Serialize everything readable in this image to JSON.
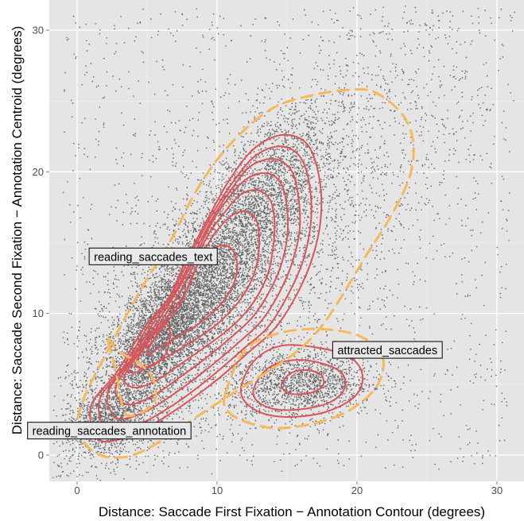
{
  "chart_data": {
    "type": "scatter",
    "xlabel": "Distance: Saccade First Fixation − Annotation Contour (degrees)",
    "ylabel": "Distance: Saccade Second Fixation − Annotation Centroid (degrees)",
    "xlim": [
      -2,
      31.5
    ],
    "ylim": [
      -2,
      32
    ],
    "x_ticks": [
      0,
      10,
      20,
      30
    ],
    "x_tick_labels": [
      "0",
      "10",
      "20",
      "30"
    ],
    "y_ticks": [
      0,
      10,
      20,
      30
    ],
    "y_tick_labels": [
      "0",
      "10",
      "20",
      "30"
    ],
    "grid": true,
    "background": "#e5e5e5",
    "point_color": "#000000",
    "series": [
      {
        "name": "reading_saccades_text",
        "style": "solid",
        "color": "#d9555a",
        "contours": [
          [
            [
              1.0,
              3.5
            ],
            [
              2.8,
              5.8
            ],
            [
              4.8,
              9.0
            ],
            [
              6.6,
              11.2
            ],
            [
              7.8,
              13.8
            ],
            [
              9.4,
              16.8
            ],
            [
              10.8,
              19.3
            ],
            [
              12.6,
              21.6
            ],
            [
              14.6,
              22.6
            ],
            [
              16.4,
              22.0
            ],
            [
              17.3,
              19.6
            ],
            [
              17.4,
              16.6
            ],
            [
              16.7,
              13.6
            ],
            [
              15.4,
              10.8
            ],
            [
              14.0,
              8.8
            ],
            [
              12.3,
              7.3
            ],
            [
              10.1,
              5.4
            ],
            [
              7.8,
              3.7
            ],
            [
              5.3,
              2.1
            ],
            [
              3.0,
              1.1
            ],
            [
              1.4,
              1.2
            ]
          ],
          [
            [
              1.6,
              3.9
            ],
            [
              3.3,
              6.2
            ],
            [
              5.2,
              9.3
            ],
            [
              6.9,
              11.6
            ],
            [
              8.1,
              14.1
            ],
            [
              9.6,
              16.9
            ],
            [
              11.0,
              19.1
            ],
            [
              12.7,
              21.1
            ],
            [
              14.5,
              21.8
            ],
            [
              15.9,
              21.1
            ],
            [
              16.6,
              19.1
            ],
            [
              16.7,
              16.4
            ],
            [
              16.1,
              13.6
            ],
            [
              14.9,
              11.0
            ],
            [
              13.6,
              9.0
            ],
            [
              12.0,
              7.6
            ],
            [
              9.9,
              5.8
            ],
            [
              7.7,
              4.1
            ],
            [
              5.3,
              2.6
            ],
            [
              3.2,
              1.7
            ],
            [
              2.0,
              1.8
            ]
          ],
          [
            [
              2.2,
              4.4
            ],
            [
              3.8,
              6.7
            ],
            [
              5.5,
              9.4
            ],
            [
              7.1,
              11.7
            ],
            [
              8.3,
              14.1
            ],
            [
              9.6,
              16.6
            ],
            [
              10.9,
              18.6
            ],
            [
              12.4,
              20.4
            ],
            [
              14.1,
              20.9
            ],
            [
              15.3,
              20.1
            ],
            [
              15.8,
              18.3
            ],
            [
              15.9,
              15.9
            ],
            [
              15.3,
              13.4
            ],
            [
              14.3,
              11.2
            ],
            [
              13.1,
              9.4
            ],
            [
              11.6,
              8.0
            ],
            [
              9.7,
              6.4
            ],
            [
              7.6,
              4.8
            ],
            [
              5.5,
              3.4
            ],
            [
              3.6,
              2.6
            ],
            [
              2.6,
              2.8
            ]
          ],
          [
            [
              2.8,
              4.9
            ],
            [
              4.2,
              7.1
            ],
            [
              5.8,
              9.5
            ],
            [
              7.2,
              11.7
            ],
            [
              8.4,
              13.9
            ],
            [
              9.5,
              16.2
            ],
            [
              10.7,
              18.0
            ],
            [
              12.1,
              19.5
            ],
            [
              13.6,
              19.9
            ],
            [
              14.6,
              19.1
            ],
            [
              15.0,
              17.4
            ],
            [
              15.0,
              15.3
            ],
            [
              14.5,
              13.2
            ],
            [
              13.6,
              11.3
            ],
            [
              12.5,
              9.7
            ],
            [
              11.1,
              8.4
            ],
            [
              9.4,
              7.0
            ],
            [
              7.5,
              5.6
            ],
            [
              5.6,
              4.3
            ],
            [
              4.0,
              3.6
            ],
            [
              3.1,
              3.8
            ]
          ],
          [
            [
              3.4,
              5.6
            ],
            [
              4.7,
              7.6
            ],
            [
              6.1,
              9.6
            ],
            [
              7.4,
              11.6
            ],
            [
              8.4,
              13.6
            ],
            [
              9.4,
              15.6
            ],
            [
              10.5,
              17.1
            ],
            [
              11.7,
              18.4
            ],
            [
              12.9,
              18.7
            ],
            [
              13.8,
              18.0
            ],
            [
              14.1,
              16.5
            ],
            [
              14.0,
              14.6
            ],
            [
              13.6,
              12.7
            ],
            [
              12.8,
              11.1
            ],
            [
              11.8,
              9.8
            ],
            [
              10.6,
              8.7
            ],
            [
              9.1,
              7.6
            ],
            [
              7.5,
              6.5
            ],
            [
              5.9,
              5.4
            ],
            [
              4.5,
              4.8
            ],
            [
              3.7,
              4.9
            ]
          ],
          [
            [
              4.2,
              6.6
            ],
            [
              5.3,
              8.3
            ],
            [
              6.5,
              9.8
            ],
            [
              7.7,
              11.4
            ],
            [
              8.5,
              13.2
            ],
            [
              9.3,
              14.8
            ],
            [
              10.2,
              16.1
            ],
            [
              11.2,
              17.0
            ],
            [
              12.1,
              17.2
            ],
            [
              12.8,
              16.6
            ],
            [
              13.0,
              15.4
            ],
            [
              12.9,
              13.8
            ],
            [
              12.4,
              12.2
            ],
            [
              11.6,
              10.9
            ],
            [
              10.7,
              9.9
            ],
            [
              9.7,
              9.0
            ],
            [
              8.5,
              8.2
            ],
            [
              7.2,
              7.4
            ],
            [
              6.0,
              6.7
            ],
            [
              4.9,
              6.2
            ],
            [
              4.3,
              6.2
            ]
          ],
          [
            [
              5.0,
              7.3
            ],
            [
              5.8,
              8.6
            ],
            [
              6.6,
              9.6
            ],
            [
              7.4,
              10.7
            ],
            [
              8.0,
              12.1
            ],
            [
              8.6,
              13.4
            ],
            [
              9.4,
              14.3
            ],
            [
              10.3,
              14.8
            ],
            [
              11.0,
              14.6
            ],
            [
              11.4,
              13.8
            ],
            [
              11.4,
              12.8
            ],
            [
              11.0,
              11.7
            ],
            [
              10.3,
              10.7
            ],
            [
              9.5,
              9.9
            ],
            [
              8.6,
              9.2
            ],
            [
              7.6,
              8.6
            ],
            [
              6.6,
              8.0
            ],
            [
              5.7,
              7.5
            ],
            [
              5.2,
              7.1
            ]
          ],
          [
            [
              5.4,
              8.0
            ],
            [
              5.9,
              8.9
            ],
            [
              6.3,
              9.3
            ],
            [
              6.6,
              8.9
            ],
            [
              6.6,
              8.1
            ],
            [
              6.3,
              7.1
            ],
            [
              5.7,
              6.5
            ],
            [
              4.9,
              6.1
            ],
            [
              4.0,
              5.8
            ],
            [
              3.5,
              6.1
            ],
            [
              3.6,
              6.8
            ],
            [
              4.3,
              7.4
            ],
            [
              5.0,
              7.7
            ]
          ]
        ]
      },
      {
        "name": "attracted_saccades",
        "style": "solid",
        "color": "#d9555a",
        "contours": [
          [
            [
              11.7,
              4.5
            ],
            [
              12.6,
              6.6
            ],
            [
              14.5,
              7.7
            ],
            [
              17.1,
              7.6
            ],
            [
              19.5,
              6.9
            ],
            [
              20.4,
              5.6
            ],
            [
              19.8,
              4.1
            ],
            [
              17.6,
              3.0
            ],
            [
              14.8,
              2.7
            ],
            [
              12.7,
              3.2
            ]
          ],
          [
            [
              12.6,
              4.6
            ],
            [
              13.6,
              6.1
            ],
            [
              15.4,
              6.7
            ],
            [
              17.4,
              6.5
            ],
            [
              18.9,
              5.8
            ],
            [
              19.1,
              4.7
            ],
            [
              18.2,
              3.8
            ],
            [
              16.5,
              3.3
            ],
            [
              14.4,
              3.2
            ],
            [
              13.0,
              3.7
            ]
          ],
          [
            [
              14.6,
              5.0
            ],
            [
              15.3,
              5.8
            ],
            [
              16.4,
              6.0
            ],
            [
              17.4,
              5.7
            ],
            [
              17.6,
              5.0
            ],
            [
              17.0,
              4.5
            ],
            [
              16.0,
              4.3
            ],
            [
              15.0,
              4.4
            ]
          ]
        ]
      },
      {
        "name": "reading_saccades_text",
        "style": "dashed",
        "color": "#f5b85a",
        "contours": [
          [
            [
              0.4,
              3.8
            ],
            [
              2.2,
              7.4
            ],
            [
              4.5,
              11.6
            ],
            [
              6.6,
              15.0
            ],
            [
              8.6,
              18.8
            ],
            [
              10.8,
              21.8
            ],
            [
              13.8,
              24.4
            ],
            [
              16.8,
              25.4
            ],
            [
              19.6,
              25.8
            ],
            [
              21.3,
              25.6
            ],
            [
              23.2,
              24.1
            ],
            [
              24.0,
              22.2
            ],
            [
              23.8,
              19.8
            ],
            [
              22.5,
              17.0
            ],
            [
              20.6,
              14.0
            ],
            [
              18.9,
              11.2
            ],
            [
              17.4,
              9.0
            ],
            [
              15.8,
              7.4
            ],
            [
              13.8,
              6.0
            ],
            [
              11.5,
              4.6
            ],
            [
              8.7,
              2.8
            ],
            [
              6.0,
              1.0
            ],
            [
              3.6,
              -0.1
            ],
            [
              1.4,
              0.1
            ],
            [
              0.1,
              1.7
            ]
          ]
        ]
      },
      {
        "name": "attracted_saccades",
        "style": "dashed",
        "color": "#f5b85a",
        "contours": [
          [
            [
              10.6,
              4.4
            ],
            [
              12.0,
              7.4
            ],
            [
              14.4,
              8.6
            ],
            [
              17.4,
              8.9
            ],
            [
              20.2,
              8.4
            ],
            [
              21.8,
              7.0
            ],
            [
              21.5,
              5.0
            ],
            [
              19.7,
              3.3
            ],
            [
              17.2,
              2.3
            ],
            [
              14.2,
              1.9
            ],
            [
              11.9,
              2.4
            ],
            [
              10.7,
              3.2
            ]
          ]
        ]
      },
      {
        "name": "reading_saccades_annotation",
        "style": "dashed",
        "color": "#f5b85a",
        "contours": [
          [
            [
              2.2,
              8.2
            ],
            [
              3.0,
              7.3
            ],
            [
              4.4,
              6.5
            ],
            [
              5.3,
              5.6
            ],
            [
              5.6,
              4.7
            ],
            [
              5.5,
              3.7
            ],
            [
              4.6,
              3.0
            ],
            [
              3.6,
              2.8
            ],
            [
              3.2,
              3.6
            ],
            [
              3.0,
              4.6
            ],
            [
              2.8,
              5.8
            ],
            [
              2.5,
              7.0
            ]
          ]
        ]
      }
    ],
    "annotations": [
      {
        "text": "reading_saccades_text",
        "x": 1.2,
        "y": 14.0
      },
      {
        "text": "attracted_saccades",
        "x": 18.6,
        "y": 7.4
      },
      {
        "text": "reading_saccades_annotation",
        "x": -3.2,
        "y": 1.7
      }
    ]
  }
}
